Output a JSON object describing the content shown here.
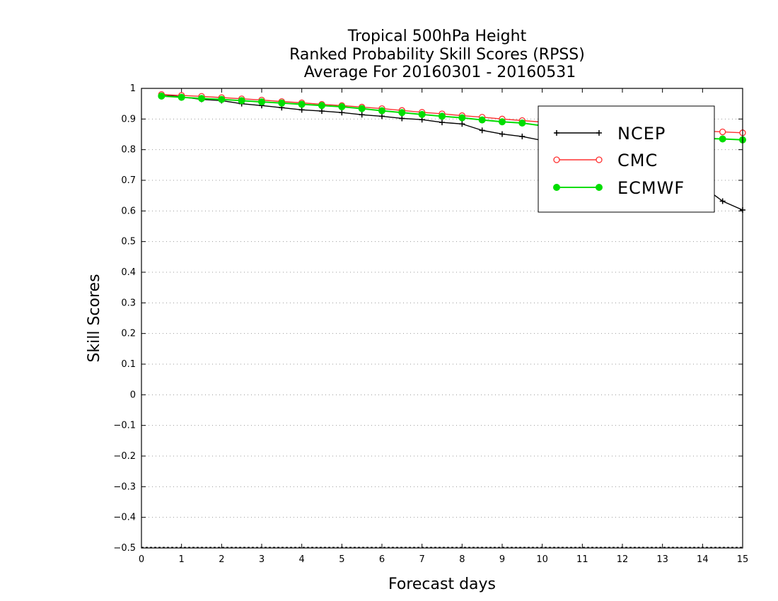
{
  "chart_data": {
    "type": "line",
    "title": [
      "Tropical 500hPa Height",
      "Ranked Probability Skill Scores (RPSS)",
      "Average For 20160301 - 20160531"
    ],
    "xlabel": "Forecast days",
    "ylabel": "Skill Scores",
    "xlim": [
      0,
      15
    ],
    "ylim": [
      -0.5,
      1
    ],
    "xticks": [
      "0",
      "1",
      "2",
      "3",
      "4",
      "5",
      "6",
      "7",
      "8",
      "9",
      "10",
      "11",
      "12",
      "13",
      "14",
      "15"
    ],
    "yticks": [
      "−0.5",
      "−0.4",
      "−0.3",
      "−0.2",
      "−0.1",
      "0",
      "0.1",
      "0.2",
      "0.3",
      "0.4",
      "0.5",
      "0.6",
      "0.7",
      "0.8",
      "0.9",
      "1"
    ],
    "yticks_values": [
      -0.5,
      -0.4,
      -0.3,
      -0.2,
      -0.1,
      0,
      0.1,
      0.2,
      0.3,
      0.4,
      0.5,
      0.6,
      0.7,
      0.8,
      0.9,
      1
    ],
    "grid": "horizontal-dotted",
    "legend_position": "top-right",
    "x": [
      0.5,
      1,
      1.5,
      2,
      2.5,
      3,
      3.5,
      4,
      4.5,
      5,
      5.5,
      6,
      6.5,
      7,
      7.5,
      8,
      8.5,
      9,
      9.5,
      10,
      10.5,
      11,
      11.5,
      12,
      12.5,
      13,
      13.5,
      14,
      14.5,
      15
    ],
    "series": [
      {
        "name": "NCEP",
        "color": "#000000",
        "marker": "plus",
        "values": [
          0.98,
          0.972,
          0.964,
          0.96,
          0.95,
          0.944,
          0.937,
          0.93,
          0.926,
          0.921,
          0.914,
          0.909,
          0.902,
          0.898,
          0.889,
          0.884,
          0.863,
          0.851,
          0.843,
          0.83,
          0.815,
          0.8,
          0.785,
          0.77,
          0.755,
          0.73,
          0.705,
          0.68,
          0.632,
          0.603
        ]
      },
      {
        "name": "CMC",
        "color": "#ff3030",
        "marker": "open-circle",
        "values": [
          0.98,
          0.977,
          0.974,
          0.97,
          0.966,
          0.962,
          0.957,
          0.953,
          0.948,
          0.944,
          0.939,
          0.934,
          0.928,
          0.922,
          0.917,
          0.911,
          0.906,
          0.9,
          0.895,
          0.89,
          0.886,
          0.882,
          0.878,
          0.875,
          0.871,
          0.868,
          0.864,
          0.861,
          0.858,
          0.855
        ]
      },
      {
        "name": "ECMWF",
        "color": "#00dd00",
        "marker": "filled-circle",
        "values": [
          0.975,
          0.971,
          0.967,
          0.964,
          0.96,
          0.956,
          0.952,
          0.948,
          0.944,
          0.94,
          0.934,
          0.927,
          0.921,
          0.915,
          0.909,
          0.904,
          0.897,
          0.891,
          0.887,
          0.878,
          0.872,
          0.866,
          0.86,
          0.855,
          0.85,
          0.845,
          0.84,
          0.837,
          0.835,
          0.832
        ]
      }
    ]
  }
}
